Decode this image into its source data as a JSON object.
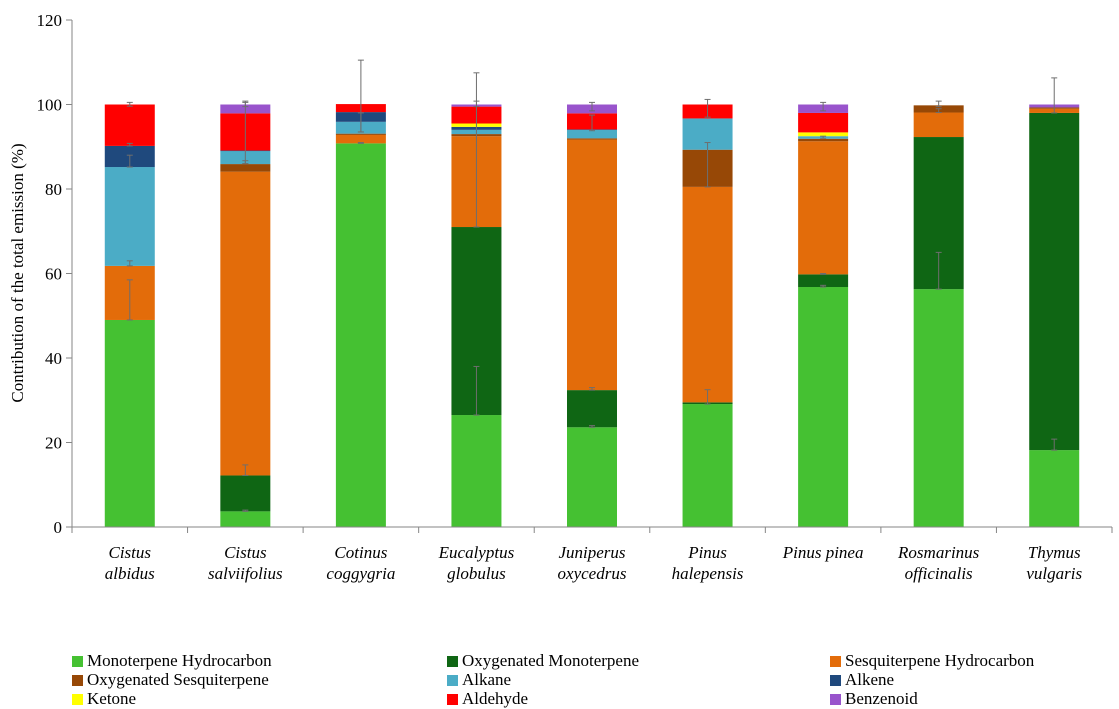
{
  "chart_data": {
    "type": "bar",
    "stacked": true,
    "ylabel": "Contribution of the total emission (%)",
    "xlabel": "",
    "ylim": [
      0,
      120
    ],
    "yticks": [
      0,
      20,
      40,
      60,
      80,
      100,
      120
    ],
    "grid": false,
    "legend_position": "bottom",
    "categories": [
      [
        "Cistus",
        "albidus"
      ],
      [
        "Cistus",
        "salviifolius"
      ],
      [
        "Cotinus",
        "coggygria"
      ],
      [
        "Eucalyptus",
        "globulus"
      ],
      [
        "Juniperus",
        "oxycedrus"
      ],
      [
        "Pinus",
        "halepensis"
      ],
      [
        "Pinus pinea"
      ],
      [
        "Rosmarinus",
        "officinalis"
      ],
      [
        "Thymus",
        "vulgaris"
      ]
    ],
    "series": [
      {
        "name": "Monoterpene Hydrocarbon",
        "color": "#45c132",
        "values": [
          49,
          3.7,
          90.8,
          26.5,
          23.6,
          29.1,
          56.8,
          56.3,
          18.2
        ]
      },
      {
        "name": "Oxygenated Monoterpene",
        "color": "#0f6614",
        "values": [
          0,
          8.5,
          0,
          44.5,
          8.8,
          0.4,
          3.0,
          36.0,
          79.8
        ]
      },
      {
        "name": "Sesquiterpene Hydrocarbon",
        "color": "#e36c0a",
        "values": [
          12.8,
          71.9,
          2.0,
          21.5,
          59.3,
          51.0,
          31.5,
          5.8,
          1.0
        ]
      },
      {
        "name": "Oxygenated Sesquiterpene",
        "color": "#974806",
        "values": [
          0,
          1.8,
          0.3,
          0.5,
          0.3,
          8.8,
          0.6,
          1.7,
          0.3
        ]
      },
      {
        "name": "Alkane",
        "color": "#4bacc6",
        "values": [
          23.4,
          3.1,
          2.8,
          1.0,
          2.0,
          7.4,
          0.6,
          0,
          0
        ]
      },
      {
        "name": "Alkene",
        "color": "#1f497d",
        "values": [
          5.0,
          0.1,
          2.3,
          0.7,
          0.1,
          0,
          0,
          0,
          0
        ]
      },
      {
        "name": "Ketone",
        "color": "#ffff00",
        "values": [
          0,
          0,
          0,
          0.8,
          0,
          0,
          0.9,
          0,
          0
        ]
      },
      {
        "name": "Aldehyde",
        "color": "#ff0000",
        "values": [
          9.8,
          8.8,
          1.9,
          4.0,
          3.8,
          3.3,
          4.6,
          0,
          0
        ]
      },
      {
        "name": "Benzenoid",
        "color": "#9954cc",
        "values": [
          0,
          2.1,
          0,
          0.5,
          2.1,
          0,
          2.0,
          0,
          0.7
        ]
      }
    ],
    "error_bars": [
      {
        "category": 0,
        "center": 49.0,
        "low": 49.0,
        "high": 58.5
      },
      {
        "category": 0,
        "center": 61.8,
        "low": 61.8,
        "high": 63.0
      },
      {
        "category": 0,
        "center": 85.2,
        "low": 85.2,
        "high": 88.0
      },
      {
        "category": 0,
        "center": 90.2,
        "low": 90.2,
        "high": 90.8
      },
      {
        "category": 0,
        "center": 100.0,
        "low": 99.6,
        "high": 100.5
      },
      {
        "category": 1,
        "center": 3.7,
        "low": 3.7,
        "high": 4.0
      },
      {
        "category": 1,
        "center": 12.2,
        "low": 12.2,
        "high": 14.7
      },
      {
        "category": 1,
        "center": 86.0,
        "low": 86.0,
        "high": 86.7
      },
      {
        "category": 1,
        "center": 97.9,
        "low": 86.0,
        "high": 100.5
      },
      {
        "category": 1,
        "center": 100.0,
        "low": 99.5,
        "high": 100.8
      },
      {
        "category": 2,
        "center": 90.8,
        "low": 90.8,
        "high": 91.0
      },
      {
        "category": 2,
        "center": 96.0,
        "low": 93.5,
        "high": 98.0
      },
      {
        "category": 2,
        "center": 100.0,
        "low": 93.5,
        "high": 110.5
      },
      {
        "category": 3,
        "center": 26.5,
        "low": 26.5,
        "high": 38.0
      },
      {
        "category": 3,
        "center": 71.0,
        "low": 71.0,
        "high": 107.5
      },
      {
        "category": 3,
        "center": 100.0,
        "low": 99.5,
        "high": 100.8
      },
      {
        "category": 4,
        "center": 23.6,
        "low": 23.6,
        "high": 24.0
      },
      {
        "category": 4,
        "center": 32.4,
        "low": 32.4,
        "high": 33.0
      },
      {
        "category": 4,
        "center": 93.8,
        "low": 93.8,
        "high": 97.5
      },
      {
        "category": 4,
        "center": 100.0,
        "low": 98.5,
        "high": 100.5
      },
      {
        "category": 5,
        "center": 29.1,
        "low": 29.1,
        "high": 32.5
      },
      {
        "category": 5,
        "center": 80.5,
        "low": 80.5,
        "high": 91.0
      },
      {
        "category": 5,
        "center": 100.0,
        "low": 97.0,
        "high": 101.2
      },
      {
        "category": 6,
        "center": 56.8,
        "low": 56.8,
        "high": 57.2
      },
      {
        "category": 6,
        "center": 59.8,
        "low": 59.8,
        "high": 60.0
      },
      {
        "category": 6,
        "center": 92.0,
        "low": 92.0,
        "high": 92.5
      },
      {
        "category": 6,
        "center": 100.0,
        "low": 98.5,
        "high": 100.5
      },
      {
        "category": 7,
        "center": 56.3,
        "low": 56.3,
        "high": 65.0
      },
      {
        "category": 7,
        "center": 98.1,
        "low": 98.1,
        "high": 99.0
      },
      {
        "category": 7,
        "center": 100.0,
        "low": 99.5,
        "high": 100.8
      },
      {
        "category": 8,
        "center": 18.2,
        "low": 18.2,
        "high": 20.8
      },
      {
        "category": 8,
        "center": 99.7,
        "low": 98.0,
        "high": 106.3
      }
    ]
  }
}
